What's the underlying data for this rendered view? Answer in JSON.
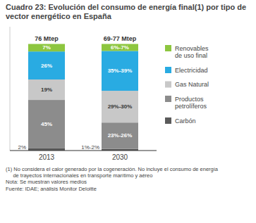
{
  "chart_data": {
    "type": "bar",
    "stacked": true,
    "title": "Cuadro 23: Evolución del consumo de energía final(1) por tipo de vector energético en España",
    "categories": [
      "2013",
      "2030"
    ],
    "series": [
      {
        "name": "Carbón",
        "color": "#5a5a5a",
        "values": [
          2,
          1.5
        ],
        "value_labels": [
          "2%",
          "1%-2%"
        ]
      },
      {
        "name": "Productos\npetrolíferos",
        "color": "#8c8c8c",
        "values": [
          45,
          24.5
        ],
        "value_labels": [
          "45%",
          "23%-26%"
        ]
      },
      {
        "name": "Gas Natural",
        "color": "#c8c8c8",
        "values": [
          19,
          29.5
        ],
        "value_labels": [
          "19%",
          "29%-30%"
        ]
      },
      {
        "name": "Electricidad",
        "color": "#29abe2",
        "values": [
          26,
          37
        ],
        "value_labels": [
          "26%",
          "35%-39%"
        ]
      },
      {
        "name": "Renovables\nde uso final",
        "color": "#8dc63f",
        "values": [
          7,
          6.5
        ],
        "value_labels": [
          "7%",
          "6%-7%"
        ]
      }
    ],
    "ylim": [
      0,
      115
    ],
    "yticks": [],
    "tick_labels": "x",
    "grid": false,
    "data_labels": true,
    "legend": "right",
    "annotations": [
      "76 Mtep",
      "69-77 Mtep"
    ],
    "footnotes": [
      "(1) No considera el calor generado por la cogeneración. No incluye el consumo de energía",
      "     de trayectos internacionales en transporte marítimo y aéreo",
      "Nota: Se muestran valores medios"
    ],
    "source": "Fuente: IDAE; análisis Monitor Deloitte"
  }
}
